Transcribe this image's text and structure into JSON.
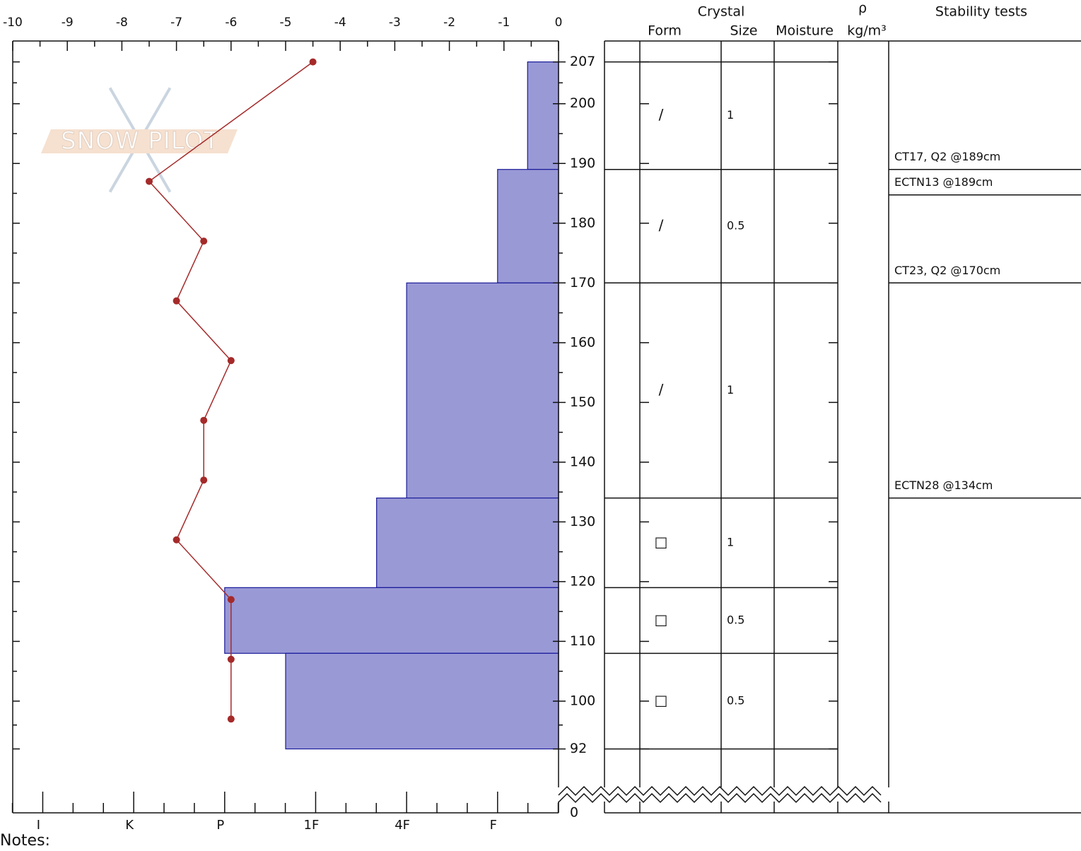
{
  "chart_data": {
    "type": "snowpit",
    "watermark": "SNOW PILOT",
    "notes": "Notes:",
    "temperature_axis": {
      "xlim": [
        -10,
        0
      ],
      "xticks": [
        -10,
        -9,
        -8,
        -7,
        -6,
        -5,
        -4,
        -3,
        -2,
        -1,
        0
      ]
    },
    "hardness_axis": {
      "xlim": [
        6.33,
        0.33
      ],
      "xticks": [
        {
          "value": 6,
          "label": "I"
        },
        {
          "value": 5,
          "label": "K"
        },
        {
          "value": 4,
          "label": "P"
        },
        {
          "value": 3,
          "label": "1F"
        },
        {
          "value": 2,
          "label": "4F"
        },
        {
          "value": 1,
          "label": "F"
        }
      ]
    },
    "ylim": [
      81.3,
      210.5
    ],
    "yticks": [
      207,
      200,
      190,
      180,
      170,
      160,
      150,
      140,
      130,
      120,
      110,
      100,
      92
    ],
    "ybreak_label": 0,
    "hardness": {
      "color": "#9999d6",
      "edge": "#1a1a99",
      "top": [
        207,
        189,
        170,
        134,
        119,
        108
      ],
      "bottom": [
        189,
        170,
        134,
        119,
        108,
        92
      ],
      "values": [
        0.67,
        1,
        2,
        2.33,
        4,
        3.33
      ]
    },
    "temperature": {
      "color": "#a52a2a",
      "depth": [
        207,
        187,
        177,
        167,
        157,
        147,
        137,
        127,
        117,
        107,
        97
      ],
      "values": [
        -4.5,
        -7.5,
        -6.5,
        -7.0,
        -6.0,
        -6.5,
        -6.5,
        -7.0,
        -6.0,
        -6.0,
        -6.0
      ]
    },
    "table": {
      "header": {
        "group": "Crystal",
        "form": "Form",
        "size": "Size",
        "moisture": "Moisture",
        "density": "ρ",
        "density_unit": "kg/m³",
        "stability": "Stability tests"
      },
      "form": [
        "/",
        "/",
        "/",
        "□",
        "□",
        "□"
      ],
      "size": [
        1,
        0.5,
        1,
        1,
        0.5,
        0.5
      ]
    },
    "stability_tests": [
      {
        "text": "CT17, Q2 @189cm",
        "depth": 189
      },
      {
        "text": "ECTN13 @189cm",
        "depth": 189
      },
      {
        "text": "CT23, Q2 @170cm",
        "depth": 170
      },
      {
        "text": "ECTN28 @134cm",
        "depth": 134
      }
    ]
  }
}
